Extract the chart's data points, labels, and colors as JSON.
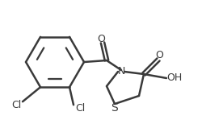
{
  "bg_color": "#ffffff",
  "line_color": "#3a3a3a",
  "line_width": 1.8,
  "font_size": 9,
  "atoms": {
    "Cl1_label": "Cl",
    "Cl2_label": "Cl",
    "N_label": "N",
    "S_label": "S",
    "O1_label": "O",
    "O2_label": "O",
    "OH_label": "OH"
  }
}
